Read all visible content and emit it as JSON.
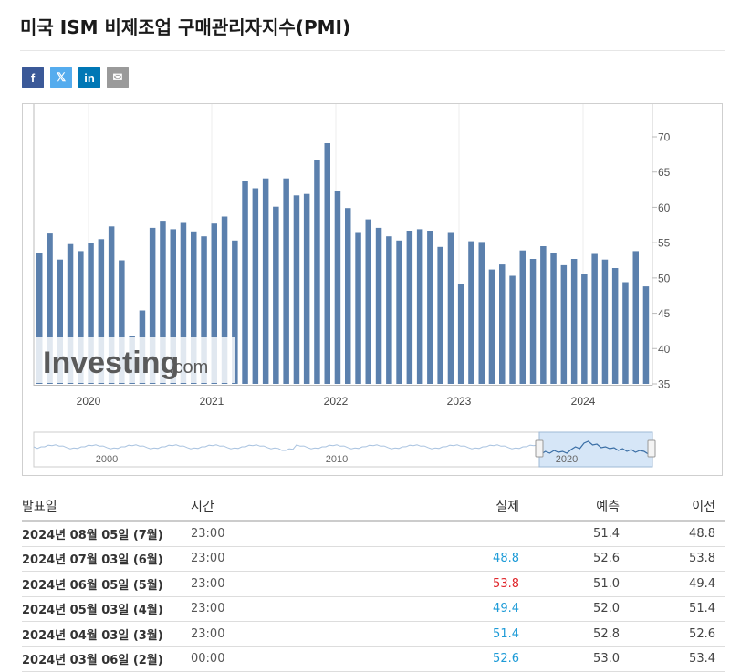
{
  "page": {
    "title": "미국 ISM 비제조업 구매관리자지수(PMI)"
  },
  "share": [
    {
      "name": "facebook-button",
      "glyph": "f",
      "color": "#3b5998"
    },
    {
      "name": "twitter-button",
      "glyph": "𝕏",
      "color": "#55acee"
    },
    {
      "name": "linkedin-button",
      "glyph": "in",
      "color": "#0077b5"
    },
    {
      "name": "email-button",
      "glyph": "✉",
      "color": "#9a9a9a"
    }
  ],
  "chart_data": {
    "type": "bar",
    "ylim": [
      35,
      70
    ],
    "y_ticks": [
      "35",
      "40",
      "45",
      "50",
      "55",
      "60",
      "65",
      "70"
    ],
    "x_ticks": [
      "2020",
      "2021",
      "2022",
      "2023",
      "2024"
    ],
    "values": [
      53.6,
      56.3,
      52.6,
      54.8,
      53.8,
      54.9,
      55.5,
      57.3,
      52.5,
      41.8,
      45.4,
      57.1,
      58.1,
      56.9,
      57.8,
      56.6,
      55.9,
      57.7,
      58.7,
      55.3,
      63.7,
      62.7,
      64.1,
      60.1,
      64.1,
      61.7,
      61.9,
      66.7,
      69.1,
      62.3,
      59.9,
      56.5,
      58.3,
      57.1,
      55.9,
      55.3,
      56.7,
      56.9,
      56.7,
      54.4,
      56.5,
      49.2,
      55.2,
      55.1,
      51.2,
      51.9,
      50.3,
      53.9,
      52.7,
      54.5,
      53.6,
      51.8,
      52.7,
      50.6,
      53.4,
      52.6,
      51.4,
      49.4,
      53.8,
      48.8
    ],
    "bar_color": "#5b80ad",
    "watermark": "Investing",
    "watermark_suffix": ".com",
    "navigator_labels": [
      "2000",
      "2010",
      "2020"
    ]
  },
  "table": {
    "headers": {
      "date": "발표일",
      "time": "시간",
      "actual": "실제",
      "forecast": "예측",
      "previous": "이전"
    },
    "rows": [
      {
        "date": "2024년 08월 05일 (7월)",
        "time": "23:00",
        "actual": "",
        "actual_color": "#333333",
        "forecast": "51.4",
        "previous": "48.8"
      },
      {
        "date": "2024년 07월 03일 (6월)",
        "time": "23:00",
        "actual": "48.8",
        "actual_color": "#1e9bd7",
        "forecast": "52.6",
        "previous": "53.8"
      },
      {
        "date": "2024년 06월 05일 (5월)",
        "time": "23:00",
        "actual": "53.8",
        "actual_color": "#e0272c",
        "forecast": "51.0",
        "previous": "49.4"
      },
      {
        "date": "2024년 05월 03일 (4월)",
        "time": "23:00",
        "actual": "49.4",
        "actual_color": "#1e9bd7",
        "forecast": "52.0",
        "previous": "51.4"
      },
      {
        "date": "2024년 04월 03일 (3월)",
        "time": "23:00",
        "actual": "51.4",
        "actual_color": "#1e9bd7",
        "forecast": "52.8",
        "previous": "52.6"
      },
      {
        "date": "2024년 03월 06일 (2월)",
        "time": "00:00",
        "actual": "52.6",
        "actual_color": "#1e9bd7",
        "forecast": "53.0",
        "previous": "53.4"
      }
    ]
  }
}
